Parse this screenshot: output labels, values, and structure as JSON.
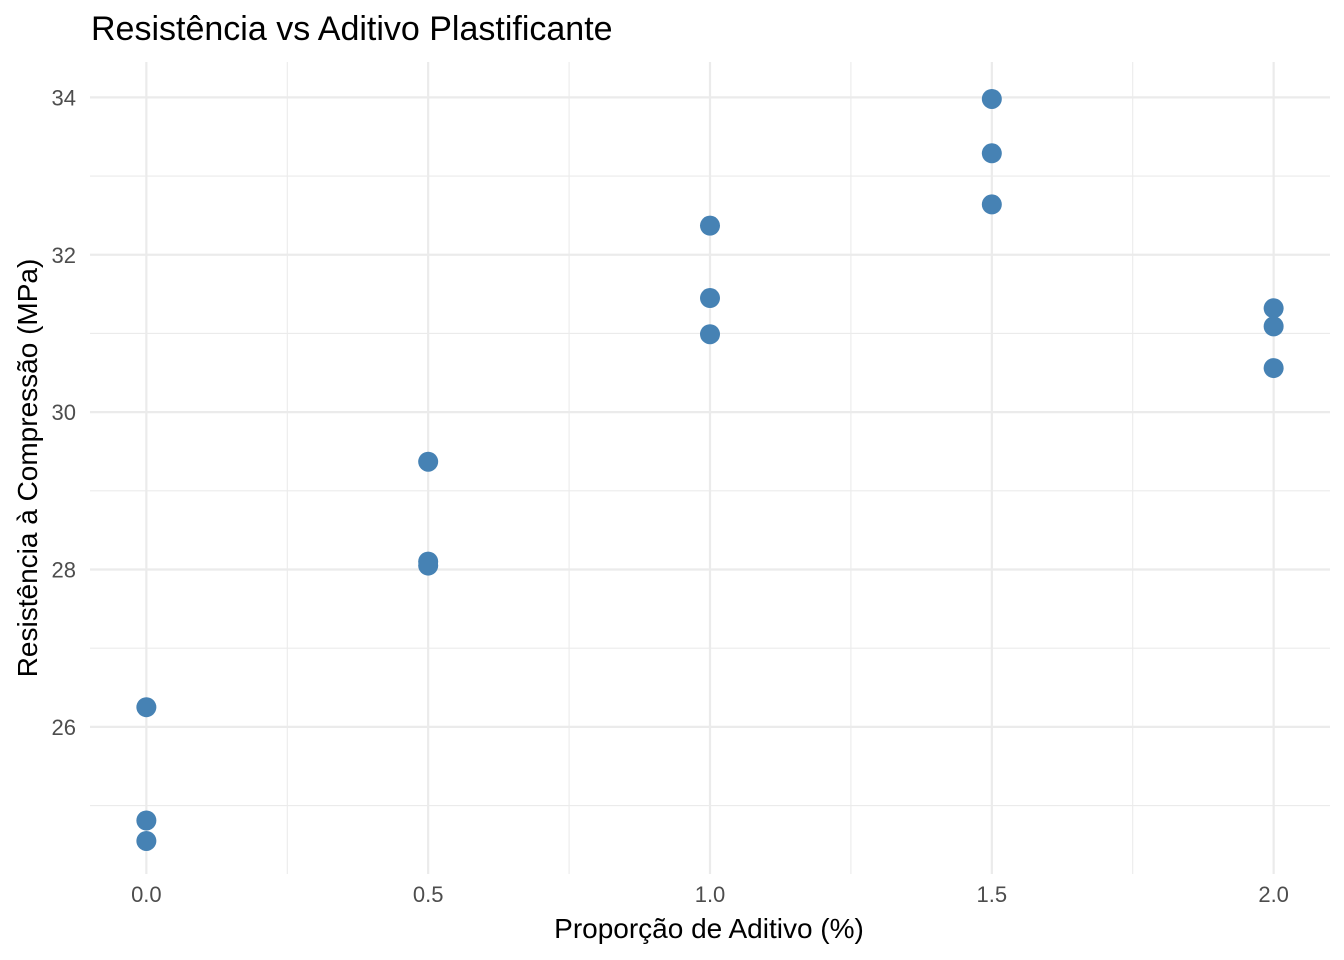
{
  "chart_data": {
    "type": "scatter",
    "title": "Resistência vs Aditivo Plastificante",
    "xlabel": "Proporção de Aditivo (%)",
    "ylabel": "Resistência à Compressão (MPa)",
    "xlim": [
      -0.1,
      2.1
    ],
    "ylim": [
      24.13,
      34.45
    ],
    "x_ticks": [
      0.0,
      0.5,
      1.0,
      1.5,
      2.0
    ],
    "x_tick_labels": [
      "0.0",
      "0.5",
      "1.0",
      "1.5",
      "2.0"
    ],
    "y_ticks": [
      26,
      28,
      30,
      32,
      34
    ],
    "y_tick_labels": [
      "26",
      "28",
      "30",
      "32",
      "34"
    ],
    "grid": true,
    "legend": "none",
    "point_color": "#4682B4",
    "points": [
      {
        "x": 0.0,
        "y": 26.25
      },
      {
        "x": 0.0,
        "y": 24.81
      },
      {
        "x": 0.0,
        "y": 24.55
      },
      {
        "x": 0.5,
        "y": 29.37
      },
      {
        "x": 0.5,
        "y": 28.1
      },
      {
        "x": 0.5,
        "y": 28.05
      },
      {
        "x": 1.0,
        "y": 32.37
      },
      {
        "x": 1.0,
        "y": 31.45
      },
      {
        "x": 1.0,
        "y": 30.99
      },
      {
        "x": 1.5,
        "y": 33.98
      },
      {
        "x": 1.5,
        "y": 33.29
      },
      {
        "x": 1.5,
        "y": 32.64
      },
      {
        "x": 2.0,
        "y": 31.32
      },
      {
        "x": 2.0,
        "y": 31.09
      },
      {
        "x": 2.0,
        "y": 30.56
      }
    ]
  }
}
